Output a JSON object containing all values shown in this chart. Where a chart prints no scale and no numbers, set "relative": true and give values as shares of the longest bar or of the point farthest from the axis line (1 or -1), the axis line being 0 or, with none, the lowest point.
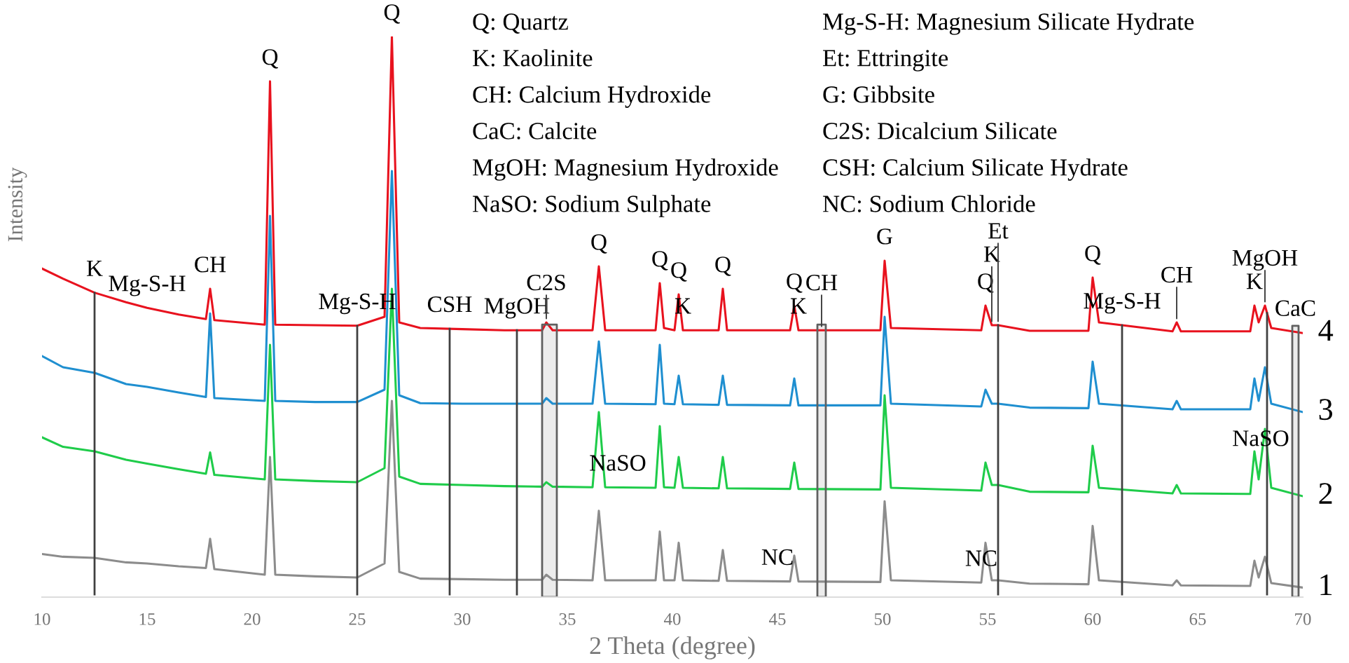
{
  "chart_data": {
    "type": "line",
    "relative": true,
    "xlabel": "2 Theta (degree)",
    "ylabel": "Intensity",
    "xlim": [
      10,
      70
    ],
    "xticks": [
      10,
      15,
      20,
      25,
      30,
      35,
      40,
      45,
      50,
      55,
      60,
      65,
      70
    ],
    "grid": false,
    "legend": false,
    "marker": "none",
    "line_style": "solid",
    "x": [
      10,
      11,
      12.5,
      14,
      15,
      16.5,
      17.8,
      18.0,
      18.2,
      20.6,
      20.85,
      21.1,
      23,
      25,
      26.3,
      26.65,
      27.0,
      28,
      30,
      32,
      33.8,
      34.0,
      34.3,
      36.2,
      36.5,
      36.8,
      39.2,
      39.4,
      39.6,
      40.1,
      40.3,
      40.5,
      42.2,
      42.4,
      42.6,
      45.6,
      45.8,
      46.0,
      49.9,
      50.1,
      50.4,
      54.7,
      54.9,
      55.2,
      55.5,
      57,
      59.8,
      60.0,
      60.3,
      63.8,
      64.0,
      64.2,
      67.5,
      67.7,
      67.9,
      68.2,
      68.5,
      70
    ],
    "series": [
      {
        "name": "1",
        "color": "#8c8c8c",
        "values": [
          0.077,
          0.072,
          0.07,
          0.062,
          0.06,
          0.055,
          0.052,
          0.104,
          0.05,
          0.04,
          0.25,
          0.04,
          0.037,
          0.035,
          0.06,
          0.35,
          0.045,
          0.033,
          0.032,
          0.031,
          0.031,
          0.04,
          0.031,
          0.03,
          0.154,
          0.03,
          0.03,
          0.117,
          0.03,
          0.03,
          0.097,
          0.03,
          0.029,
          0.084,
          0.029,
          0.028,
          0.074,
          0.028,
          0.027,
          0.171,
          0.03,
          0.026,
          0.097,
          0.03,
          0.03,
          0.024,
          0.023,
          0.127,
          0.03,
          0.021,
          0.03,
          0.021,
          0.02,
          0.065,
          0.035,
          0.072,
          0.025,
          0.017
        ]
      },
      {
        "name": "2",
        "color": "#1fcc4a",
        "values": [
          0.285,
          0.268,
          0.26,
          0.245,
          0.238,
          0.228,
          0.22,
          0.258,
          0.218,
          0.21,
          0.45,
          0.21,
          0.207,
          0.205,
          0.23,
          0.55,
          0.215,
          0.202,
          0.2,
          0.198,
          0.197,
          0.205,
          0.197,
          0.196,
          0.33,
          0.196,
          0.195,
          0.305,
          0.196,
          0.195,
          0.25,
          0.195,
          0.194,
          0.25,
          0.194,
          0.193,
          0.24,
          0.193,
          0.192,
          0.36,
          0.195,
          0.19,
          0.24,
          0.2,
          0.2,
          0.188,
          0.187,
          0.27,
          0.195,
          0.185,
          0.2,
          0.185,
          0.184,
          0.26,
          0.21,
          0.3,
          0.195,
          0.18
        ]
      },
      {
        "name": "3",
        "color": "#1f8fd0",
        "values": [
          0.43,
          0.41,
          0.4,
          0.38,
          0.375,
          0.365,
          0.357,
          0.506,
          0.355,
          0.35,
          0.68,
          0.35,
          0.348,
          0.348,
          0.37,
          0.76,
          0.36,
          0.346,
          0.345,
          0.345,
          0.345,
          0.355,
          0.345,
          0.345,
          0.456,
          0.345,
          0.344,
          0.45,
          0.345,
          0.344,
          0.395,
          0.344,
          0.343,
          0.395,
          0.343,
          0.342,
          0.39,
          0.342,
          0.342,
          0.5,
          0.345,
          0.34,
          0.37,
          0.345,
          0.345,
          0.338,
          0.337,
          0.42,
          0.345,
          0.335,
          0.35,
          0.335,
          0.335,
          0.39,
          0.35,
          0.41,
          0.345,
          0.33
        ]
      },
      {
        "name": "4",
        "color": "#e8121e",
        "values": [
          0.586,
          0.568,
          0.543,
          0.526,
          0.516,
          0.504,
          0.496,
          0.55,
          0.494,
          0.486,
          0.92,
          0.486,
          0.485,
          0.484,
          0.5,
          1.0,
          0.49,
          0.48,
          0.478,
          0.476,
          0.476,
          0.49,
          0.476,
          0.476,
          0.59,
          0.476,
          0.476,
          0.56,
          0.48,
          0.476,
          0.54,
          0.476,
          0.476,
          0.55,
          0.476,
          0.476,
          0.52,
          0.476,
          0.476,
          0.6,
          0.48,
          0.476,
          0.52,
          0.485,
          0.485,
          0.475,
          0.475,
          0.57,
          0.49,
          0.474,
          0.49,
          0.474,
          0.474,
          0.52,
          0.49,
          0.52,
          0.48,
          0.471
        ]
      }
    ],
    "ref_lines": [
      {
        "axis": "x",
        "value": 12.5,
        "color": "#404040"
      },
      {
        "axis": "x",
        "value": 25.0,
        "color": "#404040"
      },
      {
        "axis": "x",
        "value": 29.4,
        "color": "#404040"
      },
      {
        "axis": "x",
        "value": 32.6,
        "color": "#404040"
      },
      {
        "axis": "x",
        "value": 55.5,
        "color": "#404040"
      },
      {
        "axis": "x",
        "value": 61.4,
        "color": "#404040"
      },
      {
        "axis": "x",
        "value": 68.3,
        "color": "#404040"
      }
    ],
    "bands": [
      {
        "axis": "x",
        "from": 33.8,
        "to": 34.5,
        "color": "#606060"
      },
      {
        "axis": "x",
        "from": 46.9,
        "to": 47.3,
        "color": "#606060"
      },
      {
        "axis": "x",
        "from": 69.5,
        "to": 69.8,
        "color": "#606060"
      }
    ],
    "annotations": [
      "Q: Quartz",
      "K: Kaolinite",
      "CH: Calcium Hydroxide",
      "CaC: Calcite",
      "MgOH: Magnesium Hydroxide",
      "NaSO: Sodium Sulphate",
      "Mg-S-H: Magnesium Silicate Hydrate",
      "Et: Ettringite",
      "G: Gibbsite",
      "C2S: Dicalcium Silicate",
      "CSH: Calcium Silicate Hydrate",
      "NC: Sodium Chloride",
      {
        "text": "K",
        "x": 12.5,
        "y": 0.543
      },
      {
        "text": "Mg-S-H",
        "x": 15,
        "y": 0.516
      },
      {
        "text": "CH",
        "x": 18.0,
        "y": 0.55
      },
      {
        "text": "Q",
        "x": 20.85,
        "y": 0.92
      },
      {
        "text": "Q",
        "x": 26.65,
        "y": 1.0
      },
      {
        "text": "Mg-S-H",
        "x": 25.0,
        "y": 0.484
      },
      {
        "text": "CSH",
        "x": 29.4,
        "y": 0.479
      },
      {
        "text": "MgOH",
        "x": 32.6,
        "y": 0.476
      },
      {
        "text": "C2S",
        "x": 34.0,
        "y": 0.49
      },
      {
        "text": "Q",
        "x": 36.5,
        "y": 0.59
      },
      {
        "text": "Q",
        "x": 39.4,
        "y": 0.56
      },
      {
        "text": "Q",
        "x": 40.3,
        "y": 0.54
      },
      {
        "text": "K",
        "x": 40.5,
        "y": 0.476
      },
      {
        "text": "Q",
        "x": 42.4,
        "y": 0.55
      },
      {
        "text": "Q",
        "x": 45.8,
        "y": 0.52
      },
      {
        "text": "K",
        "x": 46.0,
        "y": 0.476
      },
      {
        "text": "CH",
        "x": 47.1,
        "y": 0.476
      },
      {
        "text": "G",
        "x": 50.1,
        "y": 0.6
      },
      {
        "text": "Q",
        "x": 54.9,
        "y": 0.52
      },
      {
        "text": "K",
        "x": 55.2,
        "y": 0.485
      },
      {
        "text": "Et",
        "x": 55.5,
        "y": 0.485
      },
      {
        "text": "Q",
        "x": 60.0,
        "y": 0.57
      },
      {
        "text": "Mg-S-H",
        "x": 61.4,
        "y": 0.485
      },
      {
        "text": "CH",
        "x": 64.0,
        "y": 0.49
      },
      {
        "text": "K",
        "x": 67.7,
        "y": 0.52
      },
      {
        "text": "MgOH",
        "x": 68.2,
        "y": 0.52
      },
      {
        "text": "CaC",
        "x": 69.65,
        "y": 0.472
      },
      {
        "text": "NaSO",
        "x": 37.4,
        "y": 0.196
      },
      {
        "text": "NaSO",
        "x": 68.0,
        "y": 0.24
      },
      {
        "text": "NC",
        "x": 45.0,
        "y": 0.028
      },
      {
        "text": "NC",
        "x": 54.7,
        "y": 0.026
      }
    ]
  }
}
